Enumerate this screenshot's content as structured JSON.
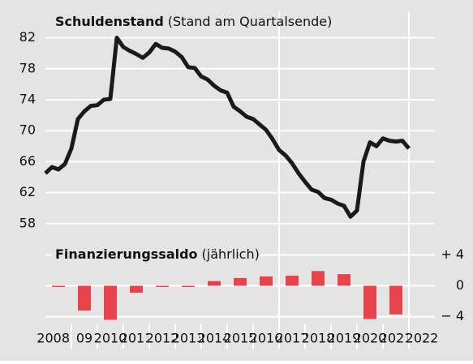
{
  "chart_data": [
    {
      "type": "line",
      "title": "Schuldenstand",
      "subtitle": "(Stand am Quartalsende)",
      "color": "#1a1a1a",
      "x": [
        2008.0,
        2008.25,
        2008.5,
        2008.75,
        2009.0,
        2009.25,
        2009.5,
        2009.75,
        2010.0,
        2010.25,
        2010.5,
        2010.75,
        2011.0,
        2011.25,
        2011.5,
        2011.75,
        2012.0,
        2012.25,
        2012.5,
        2012.75,
        2013.0,
        2013.25,
        2013.5,
        2013.75,
        2014.0,
        2014.25,
        2014.5,
        2014.75,
        2015.0,
        2015.25,
        2015.5,
        2015.75,
        2016.0,
        2016.25,
        2016.5,
        2016.75,
        2017.0,
        2017.25,
        2017.5,
        2017.75,
        2018.0,
        2018.25,
        2018.5,
        2018.75,
        2019.0,
        2019.25,
        2019.5,
        2019.75,
        2020.0,
        2020.25,
        2020.5,
        2020.75,
        2021.0,
        2021.25,
        2021.5,
        2021.75,
        2022.0
      ],
      "values": [
        64.5,
        65.3,
        65.0,
        65.7,
        67.7,
        71.5,
        72.5,
        73.2,
        73.3,
        74.0,
        74.1,
        82.0,
        80.8,
        80.3,
        79.9,
        79.4,
        80.1,
        81.2,
        80.7,
        80.6,
        80.2,
        79.5,
        78.2,
        78.1,
        77.0,
        76.6,
        75.8,
        75.2,
        74.9,
        73.1,
        72.5,
        71.8,
        71.5,
        70.8,
        70.1,
        68.9,
        67.5,
        66.8,
        65.8,
        64.5,
        63.4,
        62.4,
        62.1,
        61.3,
        61.1,
        60.6,
        60.3,
        58.9,
        59.7,
        66.0,
        68.5,
        68.0,
        69.0,
        68.7,
        68.6,
        68.7,
        67.7
      ],
      "xlim": [
        2008,
        2023
      ],
      "ylim": [
        56,
        85.3
      ],
      "yticks": [
        82,
        78,
        74,
        70,
        66,
        62,
        58
      ],
      "grid": true,
      "xgrid": [
        2017,
        2022
      ]
    },
    {
      "type": "bar",
      "title": "Finanzierungssaldo",
      "subtitle": "(jährlich)",
      "color": "#e8434a",
      "x": [
        2008,
        2009,
        2010,
        2011,
        2012,
        2013,
        2014,
        2015,
        2016,
        2017,
        2018,
        2019,
        2020,
        2021
      ],
      "values": [
        -0.1,
        -3.2,
        -4.4,
        -0.9,
        0.0,
        -0.1,
        0.6,
        1.0,
        1.2,
        1.3,
        1.9,
        1.5,
        -4.3,
        -3.7
      ],
      "xlim": [
        2008,
        2023
      ],
      "ylim": [
        -5.5,
        5.5
      ],
      "yticks": [
        {
          "value": 4,
          "label": "+ 4"
        },
        0,
        {
          "value": -4,
          "label": "− 4"
        }
      ],
      "grid": true,
      "xticks": [
        {
          "value": 2008,
          "label": "2008"
        },
        {
          "value": 2009,
          "label": "09"
        },
        2010,
        2011,
        2012,
        2013,
        2014,
        2015,
        2016,
        2017,
        2018,
        2019,
        2020,
        2021,
        2022
      ]
    }
  ]
}
